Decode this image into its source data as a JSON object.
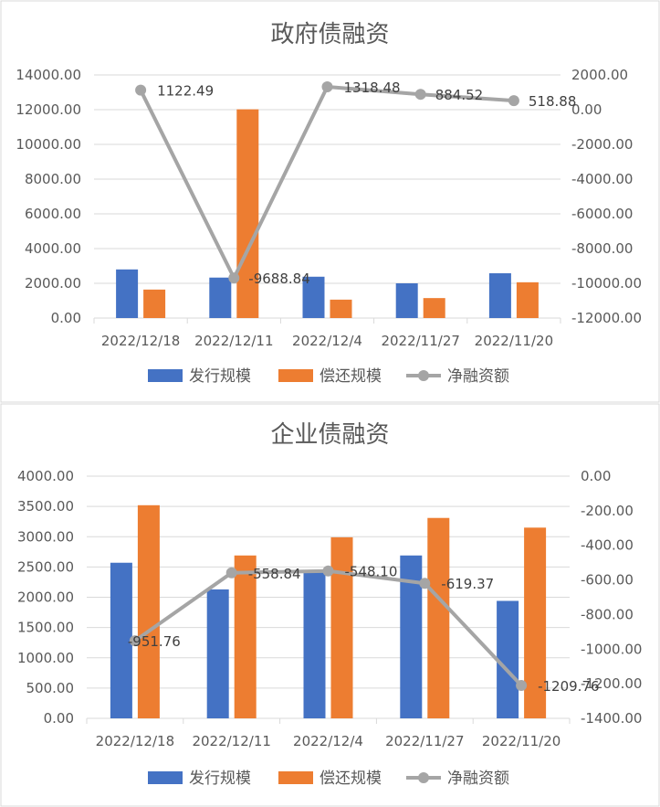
{
  "chart_data": [
    {
      "type": "bar",
      "title": "政府债融资",
      "categories": [
        "2022/12/18",
        "2022/12/11",
        "2022/12/4",
        "2022/11/27",
        "2022/11/20"
      ],
      "series": [
        {
          "name": "发行规模",
          "kind": "bar",
          "axis": "left",
          "color": "#4472c4",
          "values": [
            2800,
            2330,
            2380,
            2000,
            2580
          ]
        },
        {
          "name": "偿还规模",
          "kind": "bar",
          "axis": "left",
          "color": "#ed7d31",
          "values": [
            1640,
            12020,
            1060,
            1150,
            2060
          ]
        },
        {
          "name": "净融资额",
          "kind": "line",
          "axis": "right",
          "color": "#a5a5a5",
          "values": [
            1122.49,
            -9688.84,
            1318.48,
            884.52,
            518.88
          ],
          "labels": [
            "1122.49",
            "-9688.84",
            "1318.48",
            "884.52",
            "518.88"
          ]
        }
      ],
      "y_left": {
        "min": 0,
        "max": 14000,
        "step": 2000,
        "tick_labels": [
          "0.00",
          "2000.00",
          "4000.00",
          "6000.00",
          "8000.00",
          "10000.00",
          "12000.00",
          "14000.00"
        ]
      },
      "y_right": {
        "min": -12000,
        "max": 2000,
        "step": 2000,
        "tick_labels": [
          "-12000.00",
          "-10000.00",
          "-8000.00",
          "-6000.00",
          "-4000.00",
          "-2000.00",
          "0.00",
          "2000.00"
        ]
      },
      "grid": true,
      "legend": "bottom"
    },
    {
      "type": "bar",
      "title": "企业债融资",
      "categories": [
        "2022/12/18",
        "2022/12/11",
        "2022/12/4",
        "2022/11/27",
        "2022/11/20"
      ],
      "series": [
        {
          "name": "发行规模",
          "kind": "bar",
          "axis": "left",
          "color": "#4472c4",
          "values": [
            2570,
            2130,
            2450,
            2690,
            1940
          ]
        },
        {
          "name": "偿还规模",
          "kind": "bar",
          "axis": "left",
          "color": "#ed7d31",
          "values": [
            3520,
            2690,
            2990,
            3310,
            3150
          ]
        },
        {
          "name": "净融资额",
          "kind": "line",
          "axis": "right",
          "color": "#a5a5a5",
          "values": [
            -951.76,
            -558.84,
            -548.1,
            -619.37,
            -1209.76
          ],
          "labels": [
            "-951.76",
            "-558.84",
            "-548.10",
            "-619.37",
            "-1209.76"
          ]
        }
      ],
      "y_left": {
        "min": 0,
        "max": 4000,
        "step": 500,
        "tick_labels": [
          "0.00",
          "500.00",
          "1000.00",
          "1500.00",
          "2000.00",
          "2500.00",
          "3000.00",
          "3500.00",
          "4000.00"
        ]
      },
      "y_right": {
        "min": -1400,
        "max": 0,
        "step": 200,
        "tick_labels": [
          "-1400.00",
          "-1200.00",
          "-1000.00",
          "-800.00",
          "-600.00",
          "-400.00",
          "-200.00",
          "0.00"
        ]
      },
      "grid": true,
      "legend": "bottom"
    }
  ]
}
